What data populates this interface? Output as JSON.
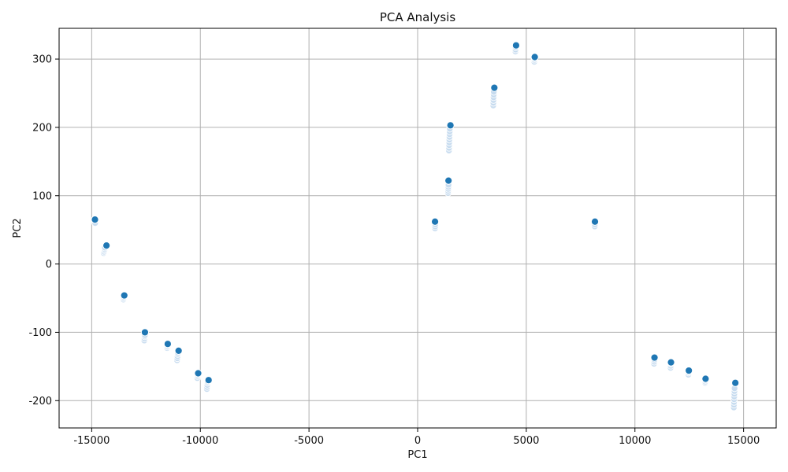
{
  "chart_data": {
    "type": "scatter",
    "title": "PCA Analysis",
    "xlabel": "PC1",
    "ylabel": "PC2",
    "xlim": [
      -16500,
      16500
    ],
    "ylim": [
      -240,
      345
    ],
    "xticks": [
      -15000,
      -10000,
      -5000,
      0,
      5000,
      10000,
      15000
    ],
    "yticks": [
      -200,
      -100,
      0,
      100,
      200,
      300
    ],
    "grid": true,
    "colors": {
      "light": "#c6dbef",
      "dark": "#1f77b4"
    },
    "series": [
      {
        "color_key": "light",
        "points": [
          [
            -14850,
            62
          ],
          [
            -14840,
            60
          ],
          [
            -14450,
            16
          ],
          [
            -14430,
            18
          ],
          [
            -14410,
            20
          ],
          [
            -14400,
            22
          ],
          [
            -14390,
            24
          ],
          [
            -13540,
            -52
          ],
          [
            -13530,
            -50
          ],
          [
            -13520,
            -48
          ],
          [
            -12580,
            -112
          ],
          [
            -12570,
            -109
          ],
          [
            -12560,
            -106
          ],
          [
            -12550,
            -104
          ],
          [
            -11530,
            -123
          ],
          [
            -11520,
            -121
          ],
          [
            -11510,
            -119
          ],
          [
            -11070,
            -141
          ],
          [
            -11060,
            -138
          ],
          [
            -11050,
            -135
          ],
          [
            -11040,
            -132
          ],
          [
            -11030,
            -130
          ],
          [
            -10140,
            -167
          ],
          [
            -10130,
            -164
          ],
          [
            -10120,
            -162
          ],
          [
            -9700,
            -183
          ],
          [
            -9690,
            -180
          ],
          [
            -9680,
            -177
          ],
          [
            -9670,
            -174
          ],
          [
            -9660,
            -172
          ],
          [
            800,
            52
          ],
          [
            805,
            55
          ],
          [
            810,
            58
          ],
          [
            1400,
            104
          ],
          [
            1405,
            107
          ],
          [
            1410,
            110
          ],
          [
            1415,
            113
          ],
          [
            1420,
            116
          ],
          [
            1440,
            166
          ],
          [
            1445,
            170
          ],
          [
            1450,
            174
          ],
          [
            1455,
            178
          ],
          [
            1460,
            182
          ],
          [
            1465,
            186
          ],
          [
            1470,
            190
          ],
          [
            1475,
            194
          ],
          [
            1480,
            198
          ],
          [
            3480,
            232
          ],
          [
            3485,
            236
          ],
          [
            3490,
            240
          ],
          [
            3495,
            244
          ],
          [
            3500,
            248
          ],
          [
            3505,
            252
          ],
          [
            4500,
            311
          ],
          [
            4505,
            314
          ],
          [
            4510,
            317
          ],
          [
            5370,
            296
          ],
          [
            5375,
            299
          ],
          [
            5380,
            301
          ],
          [
            8150,
            55
          ],
          [
            8155,
            58
          ],
          [
            10880,
            -146
          ],
          [
            10890,
            -143
          ],
          [
            10900,
            -140
          ],
          [
            11640,
            -152
          ],
          [
            11650,
            -149
          ],
          [
            11660,
            -146
          ],
          [
            12460,
            -162
          ],
          [
            12470,
            -159
          ],
          [
            12480,
            -157
          ],
          [
            13230,
            -174
          ],
          [
            13240,
            -172
          ],
          [
            13250,
            -170
          ],
          [
            14550,
            -210
          ],
          [
            14555,
            -206
          ],
          [
            14560,
            -202
          ],
          [
            14565,
            -198
          ],
          [
            14570,
            -194
          ],
          [
            14575,
            -190
          ],
          [
            14580,
            -186
          ],
          [
            14585,
            -182
          ]
        ]
      },
      {
        "color_key": "dark",
        "points": [
          [
            -14850,
            65
          ],
          [
            -14320,
            27
          ],
          [
            -13500,
            -46
          ],
          [
            -12550,
            -100
          ],
          [
            -11500,
            -117
          ],
          [
            -11000,
            -127
          ],
          [
            -10100,
            -160
          ],
          [
            -9620,
            -170
          ],
          [
            800,
            62
          ],
          [
            1420,
            122
          ],
          [
            1510,
            203
          ],
          [
            3530,
            258
          ],
          [
            4530,
            320
          ],
          [
            5390,
            303
          ],
          [
            8160,
            62
          ],
          [
            10900,
            -137
          ],
          [
            11660,
            -144
          ],
          [
            12480,
            -156
          ],
          [
            13250,
            -168
          ],
          [
            14620,
            -174
          ]
        ]
      }
    ]
  }
}
